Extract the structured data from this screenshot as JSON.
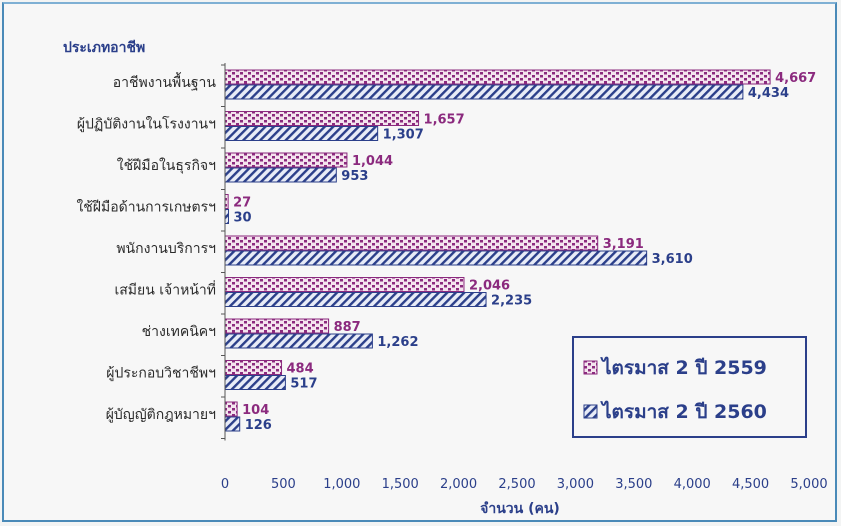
{
  "colors": {
    "series_2559": "#8b2a7e",
    "series_2560": "#2b3f8a",
    "label_2559": "#8b2a7e",
    "label_2560": "#2b3f8a"
  },
  "chart_data": {
    "type": "bar",
    "orientation": "horizontal",
    "category_header": "ประเภทอาชีพ",
    "categories": [
      "อาชีพงานพื้นฐาน",
      "ผู้ปฏิบัติงานในโรงงานฯ",
      "ใช้ฝีมือในธุรกิจฯ",
      "ใช้ฝีมือด้านการเกษตรฯ",
      "พนักงานบริการฯ",
      "เสมียน    เจ้าหน้าที่",
      "ช่างเทคนิคฯ",
      "ผู้ประกอบวิชาชีพฯ",
      "ผู้บัญญัติกฎหมายฯ"
    ],
    "series": [
      {
        "name": "ไตรมาส 2 ปี 2559",
        "values": [
          4667,
          1657,
          1044,
          27,
          3191,
          2046,
          887,
          484,
          104
        ],
        "labels": [
          "4,667",
          "1,657",
          "1,044",
          "27",
          "3,191",
          "2,046",
          "887",
          "484",
          "104"
        ]
      },
      {
        "name": "ไตรมาส 2 ปี 2560",
        "values": [
          4434,
          1307,
          953,
          30,
          3610,
          2235,
          1262,
          517,
          126
        ],
        "labels": [
          "4,434",
          "1,307",
          "953",
          "30",
          "3,610",
          "2,235",
          "1,262",
          "517",
          "126"
        ]
      }
    ],
    "xlabel": "จำนวน (คน)",
    "xlim": [
      0,
      5000
    ],
    "xticks": [
      "0",
      "500",
      "1,000",
      "1,500",
      "2,000",
      "2,500",
      "3,000",
      "3,500",
      "4,000",
      "4,500",
      "5,000"
    ],
    "legend_position": "bottom-right",
    "grid": false
  }
}
